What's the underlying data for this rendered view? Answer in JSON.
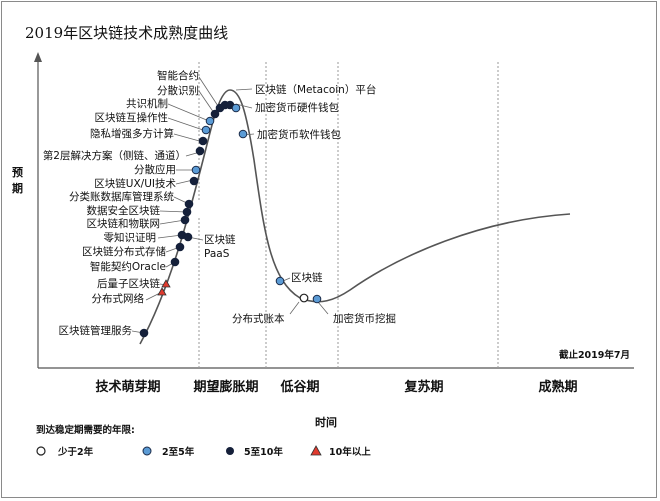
{
  "title": "2019年区块链技术成熟度曲线",
  "y_axis_label": "预期",
  "x_axis_label": "时间",
  "date_note": "截止2019年7月",
  "phases": [
    "技术萌芽期",
    "期望膨胀期",
    "低谷期",
    "复苏期",
    "成熟期"
  ],
  "legend": {
    "title": "到达稳定期需要的年限:",
    "items": [
      {
        "label": "少于2年",
        "color": "#ffffff"
      },
      {
        "label": "2至5年",
        "color": "#5b9bd5"
      },
      {
        "label": "5至10年",
        "color": "#15203a"
      },
      {
        "label": "10年以上",
        "color": "#e03a2e"
      }
    ]
  },
  "technologies": [
    {
      "label": "智能合约",
      "category": "5至10年"
    },
    {
      "label": "分散识别",
      "category": "5至10年"
    },
    {
      "label": "共识机制",
      "category": "2至5年"
    },
    {
      "label": "区块链互操作性",
      "category": "2至5年"
    },
    {
      "label": "隐私增强多方计算",
      "category": "5至10年"
    },
    {
      "label": "第2层解决方案（侧链、通道）",
      "category": "5至10年"
    },
    {
      "label": "分散应用",
      "category": "2至5年"
    },
    {
      "label": "区块链UX/UI技术",
      "category": "5至10年"
    },
    {
      "label": "分类账数据库管理系统",
      "category": "5至10年"
    },
    {
      "label": "数据安全区块链",
      "category": "5至10年"
    },
    {
      "label": "区块链和物联网",
      "category": "5至10年"
    },
    {
      "label": "零知识证明",
      "category": "5至10年"
    },
    {
      "label": "区块链分布式存储",
      "category": "5至10年"
    },
    {
      "label": "智能契约Oracle",
      "category": "5至10年"
    },
    {
      "label": "后量子区块链",
      "category": "10年以上"
    },
    {
      "label": "分布式网络",
      "category": "10年以上"
    },
    {
      "label": "区块链管理服务",
      "category": "5至10年"
    },
    {
      "label": "区块链PaaS",
      "category": "5至10年"
    },
    {
      "label": "区块链（Metacoin）平台",
      "category": "5至10年"
    },
    {
      "label": "加密货币硬件钱包",
      "category": "5至10年"
    },
    {
      "label": "加密货币软件钱包",
      "category": "2至5年"
    },
    {
      "label": "区块链",
      "category": "2至5年"
    },
    {
      "label": "分布式账本",
      "category": "少于2年"
    },
    {
      "label": "加密货币挖掘",
      "category": "2至5年"
    }
  ]
}
